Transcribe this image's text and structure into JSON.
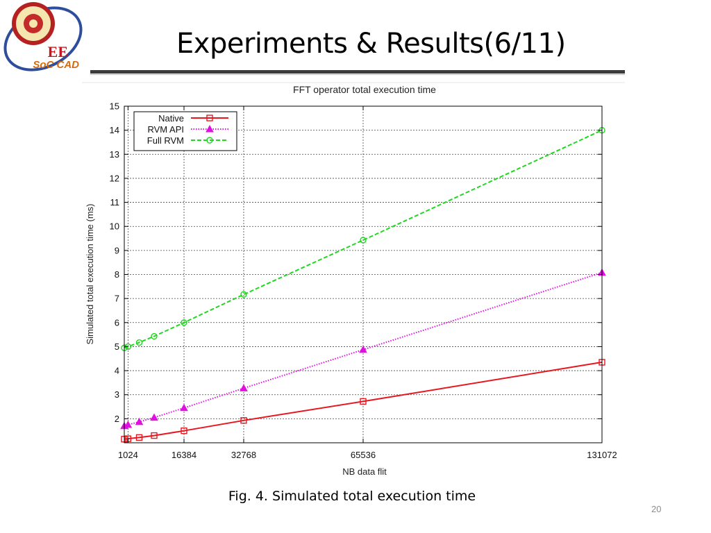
{
  "slide": {
    "title": "Experiments & Results(6/11)",
    "caption": "Fig. 4. Simulated total execution time",
    "page_number": "20",
    "logo_text": [
      "EE",
      "SoC CAD"
    ]
  },
  "chart_data": {
    "type": "line",
    "title": "FFT operator total execution time",
    "xlabel": "NB data flit",
    "ylabel": "Simulated total execution time (ms)",
    "xlim": [
      0,
      131072
    ],
    "ylim": [
      1,
      15
    ],
    "x_ticks": [
      1024,
      16384,
      32768,
      65536,
      131072
    ],
    "y_ticks": [
      2,
      3,
      4,
      5,
      6,
      7,
      8,
      9,
      10,
      11,
      12,
      13,
      14,
      15
    ],
    "grid": true,
    "legend_position": "top-left",
    "x": [
      0,
      1024,
      4096,
      8192,
      16384,
      32768,
      65536,
      131072
    ],
    "series": [
      {
        "name": "Native",
        "color": "#e8161e",
        "marker": "square",
        "dash": "solid",
        "values": [
          1.15,
          1.17,
          1.22,
          1.3,
          1.5,
          1.93,
          2.72,
          4.35
        ]
      },
      {
        "name": "RVM API",
        "color": "#e010e0",
        "marker": "triangle",
        "dash": "dotted",
        "values": [
          1.7,
          1.75,
          1.87,
          2.05,
          2.45,
          3.27,
          4.87,
          8.08
        ]
      },
      {
        "name": "Full RVM",
        "color": "#1ed81e",
        "marker": "circle",
        "dash": "dashed",
        "values": [
          4.95,
          5.0,
          5.17,
          5.43,
          6.0,
          7.17,
          9.43,
          14.0
        ]
      }
    ]
  }
}
